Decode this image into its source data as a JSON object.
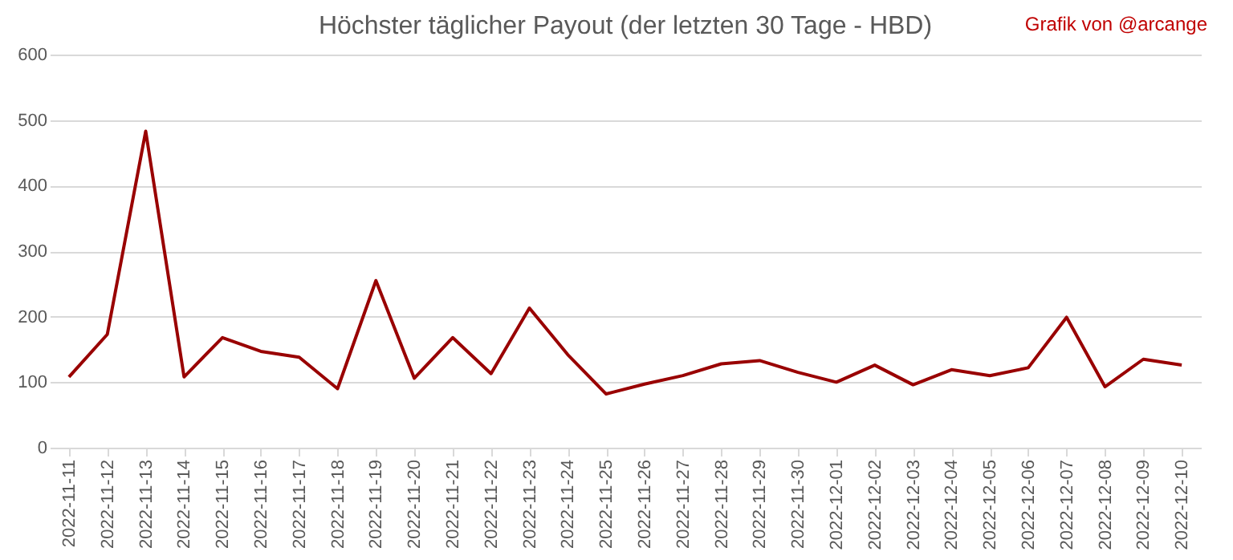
{
  "chart_data": {
    "type": "line",
    "title": "Höchster täglicher Payout (der letzten 30 Tage - HBD)",
    "annotations": [
      "Grafik von @arcange"
    ],
    "categories": [
      "2022-11-11",
      "2022-11-12",
      "2022-11-13",
      "2022-11-14",
      "2022-11-15",
      "2022-11-16",
      "2022-11-17",
      "2022-11-18",
      "2022-11-19",
      "2022-11-20",
      "2022-11-21",
      "2022-11-22",
      "2022-11-23",
      "2022-11-24",
      "2022-11-25",
      "2022-11-26",
      "2022-11-27",
      "2022-11-28",
      "2022-11-29",
      "2022-11-30",
      "2022-12-01",
      "2022-12-02",
      "2022-12-03",
      "2022-12-04",
      "2022-12-05",
      "2022-12-06",
      "2022-12-07",
      "2022-12-08",
      "2022-12-09",
      "2022-12-10"
    ],
    "series": [
      {
        "color": "#990000",
        "values": [
          108,
          173,
          483,
          108,
          168,
          147,
          138,
          90,
          255,
          106,
          168,
          113,
          213,
          142,
          82,
          97,
          110,
          128,
          133,
          115,
          100,
          126,
          96,
          119,
          110,
          122,
          199,
          93,
          135,
          126
        ]
      }
    ],
    "ylim": [
      0,
      600
    ],
    "yticks": [
      0,
      100,
      200,
      300,
      400,
      500,
      600
    ],
    "grid": "y",
    "marker": "none",
    "line_style": "solid"
  }
}
